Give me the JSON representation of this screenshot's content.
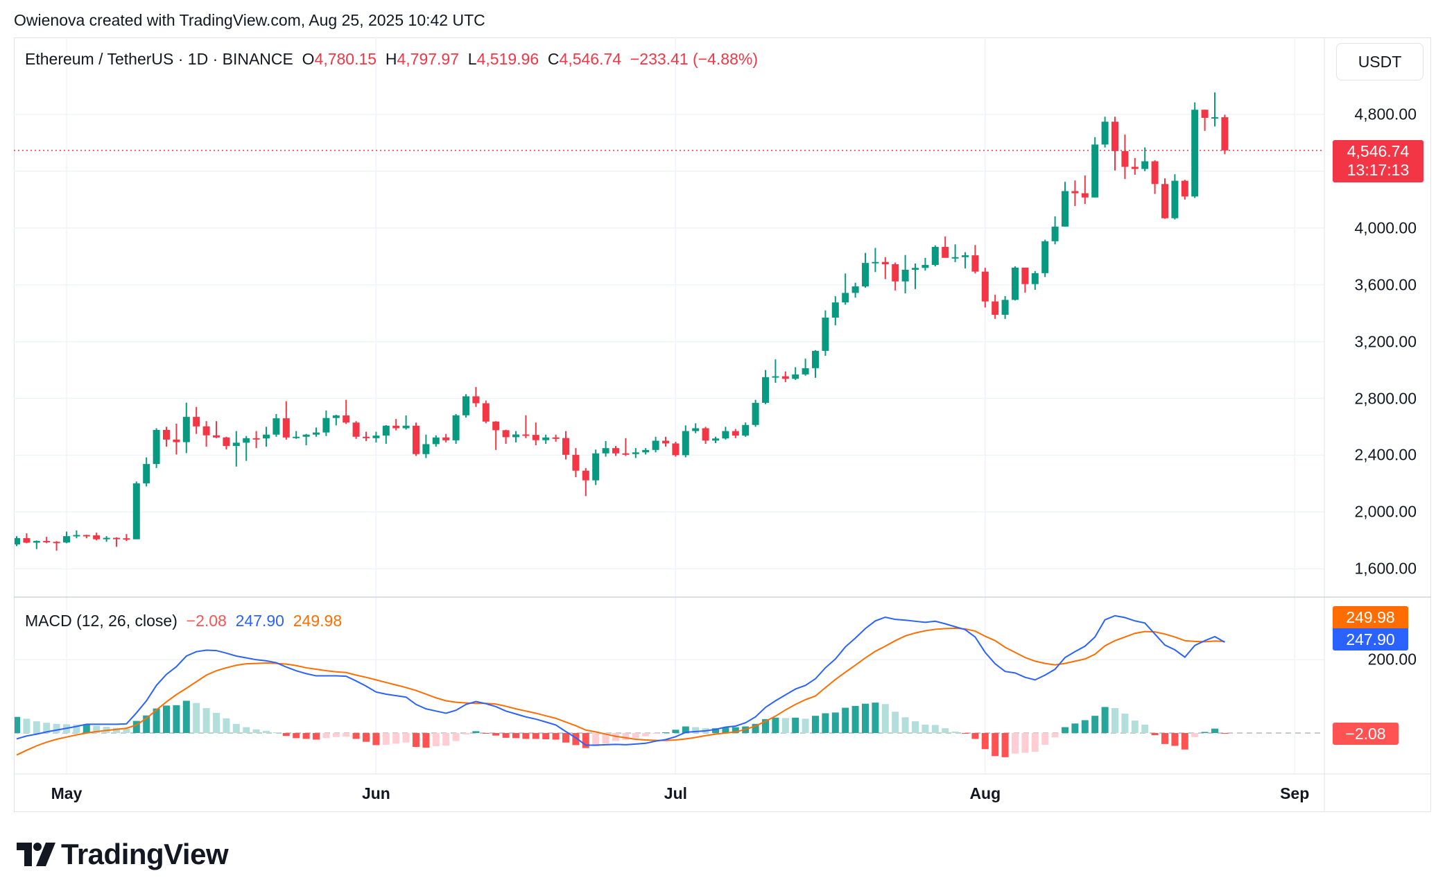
{
  "header": {
    "attribution": "Owienova created with TradingView.com, Aug 25, 2025 10:42 UTC"
  },
  "legend": {
    "symbol": "Ethereum / TetherUS · 1D · BINANCE",
    "o_label": "O",
    "o": "4,780.15",
    "h_label": "H",
    "h": "4,797.97",
    "l_label": "L",
    "l": "4,519.96",
    "c_label": "C",
    "c": "4,546.74",
    "change": "−233.41 (−4.88%)"
  },
  "price_axis": {
    "currency": "USDT",
    "last_price": "4,546.74",
    "countdown": "13:17:13"
  },
  "macd_legend": {
    "title": "MACD (12, 26, close)",
    "hist": "−2.08",
    "macd": "247.90",
    "signal": "249.98"
  },
  "macd_axis": {
    "signal_label": "249.98",
    "macd_label": "247.90",
    "hist_label": "−2.08",
    "tick": "200.00"
  },
  "logo": {
    "text": "TradingView"
  },
  "colors": {
    "up": "#089981",
    "down": "#f23645",
    "macd": "#2962ff",
    "signal": "#ff6d00",
    "hist_up_strong": "#26a69a",
    "hist_up_weak": "#b2dfdb",
    "hist_down_strong": "#ff5252",
    "hist_down_weak": "#ffcdd2"
  },
  "chart_data": [
    {
      "type": "candlestick",
      "title": "Ethereum / TetherUS · 1D · BINANCE",
      "ylim": [
        1400,
        5050
      ],
      "yticks": [
        {
          "v": 4800,
          "label": "4,800.00"
        },
        {
          "v": 4000,
          "label": "4,000.00"
        },
        {
          "v": 3600,
          "label": "3,600.00"
        },
        {
          "v": 3200,
          "label": "3,200.00"
        },
        {
          "v": 2800,
          "label": "2,800.00"
        },
        {
          "v": 2400,
          "label": "2,400.00"
        },
        {
          "v": 2000,
          "label": "2,000.00"
        },
        {
          "v": 1600,
          "label": "1,600.00"
        }
      ],
      "xticks": [
        "May",
        "Jun",
        "Jul",
        "Aug",
        "Sep"
      ],
      "last_price": 4546.74,
      "ohlc": [
        [
          1772,
          1830,
          1760,
          1816
        ],
        [
          1816,
          1850,
          1780,
          1784
        ],
        [
          1784,
          1800,
          1739,
          1796
        ],
        [
          1796,
          1825,
          1780,
          1790
        ],
        [
          1790,
          1795,
          1728,
          1785
        ],
        [
          1785,
          1862,
          1780,
          1830
        ],
        [
          1830,
          1870,
          1815,
          1838
        ],
        [
          1838,
          1840,
          1815,
          1836
        ],
        [
          1836,
          1855,
          1800,
          1808
        ],
        [
          1808,
          1830,
          1790,
          1818
        ],
        [
          1818,
          1822,
          1755,
          1815
        ],
        [
          1815,
          1845,
          1795,
          1808
        ],
        [
          1808,
          2215,
          1808,
          2202
        ],
        [
          2202,
          2385,
          2180,
          2338
        ],
        [
          2338,
          2590,
          2310,
          2578
        ],
        [
          2578,
          2600,
          2460,
          2510
        ],
        [
          2510,
          2622,
          2405,
          2492
        ],
        [
          2492,
          2770,
          2415,
          2670
        ],
        [
          2670,
          2740,
          2550,
          2603
        ],
        [
          2603,
          2640,
          2460,
          2540
        ],
        [
          2540,
          2640,
          2520,
          2525
        ],
        [
          2525,
          2530,
          2440,
          2465
        ],
        [
          2465,
          2570,
          2320,
          2488
        ],
        [
          2488,
          2535,
          2360,
          2520
        ],
        [
          2520,
          2570,
          2450,
          2518
        ],
        [
          2518,
          2600,
          2460,
          2545
        ],
        [
          2545,
          2690,
          2530,
          2660
        ],
        [
          2660,
          2780,
          2510,
          2525
        ],
        [
          2525,
          2570,
          2515,
          2530
        ],
        [
          2530,
          2550,
          2470,
          2545
        ],
        [
          2545,
          2595,
          2530,
          2560
        ],
        [
          2560,
          2715,
          2535,
          2662
        ],
        [
          2662,
          2685,
          2610,
          2680
        ],
        [
          2680,
          2790,
          2620,
          2630
        ],
        [
          2630,
          2640,
          2515,
          2530
        ],
        [
          2530,
          2565,
          2500,
          2520
        ],
        [
          2520,
          2565,
          2490,
          2538
        ],
        [
          2538,
          2612,
          2480,
          2608
        ],
        [
          2608,
          2655,
          2575,
          2590
        ],
        [
          2590,
          2680,
          2580,
          2608
        ],
        [
          2608,
          2630,
          2395,
          2408
        ],
        [
          2408,
          2545,
          2380,
          2478
        ],
        [
          2478,
          2540,
          2460,
          2525
        ],
        [
          2525,
          2550,
          2490,
          2505
        ],
        [
          2505,
          2690,
          2480,
          2681
        ],
        [
          2681,
          2830,
          2665,
          2815
        ],
        [
          2815,
          2880,
          2740,
          2766
        ],
        [
          2766,
          2785,
          2625,
          2637
        ],
        [
          2637,
          2640,
          2437,
          2576
        ],
        [
          2576,
          2580,
          2480,
          2527
        ],
        [
          2527,
          2570,
          2490,
          2546
        ],
        [
          2546,
          2681,
          2520,
          2543
        ],
        [
          2543,
          2630,
          2470,
          2506
        ],
        [
          2506,
          2545,
          2480,
          2525
        ],
        [
          2525,
          2545,
          2495,
          2521
        ],
        [
          2521,
          2570,
          2370,
          2403
        ],
        [
          2403,
          2450,
          2245,
          2291
        ],
        [
          2291,
          2310,
          2112,
          2223
        ],
        [
          2223,
          2440,
          2190,
          2413
        ],
        [
          2413,
          2500,
          2390,
          2450
        ],
        [
          2450,
          2465,
          2395,
          2413
        ],
        [
          2413,
          2520,
          2395,
          2408
        ],
        [
          2408,
          2450,
          2380,
          2420
        ],
        [
          2420,
          2450,
          2405,
          2437
        ],
        [
          2437,
          2530,
          2420,
          2502
        ],
        [
          2502,
          2530,
          2460,
          2483
        ],
        [
          2483,
          2495,
          2390,
          2400
        ],
        [
          2400,
          2610,
          2385,
          2570
        ],
        [
          2570,
          2625,
          2555,
          2590
        ],
        [
          2590,
          2600,
          2480,
          2503
        ],
        [
          2503,
          2530,
          2485,
          2518
        ],
        [
          2518,
          2600,
          2510,
          2570
        ],
        [
          2570,
          2585,
          2520,
          2538
        ],
        [
          2538,
          2630,
          2530,
          2613
        ],
        [
          2613,
          2790,
          2600,
          2769
        ],
        [
          2769,
          3000,
          2760,
          2950
        ],
        [
          2950,
          3075,
          2910,
          2956
        ],
        [
          2956,
          2990,
          2915,
          2938
        ],
        [
          2938,
          3020,
          2930,
          2969
        ],
        [
          2969,
          3080,
          2960,
          3013
        ],
        [
          3013,
          3140,
          2945,
          3135
        ],
        [
          3135,
          3420,
          3100,
          3369
        ],
        [
          3369,
          3520,
          3315,
          3476
        ],
        [
          3476,
          3680,
          3460,
          3543
        ],
        [
          3543,
          3615,
          3510,
          3589
        ],
        [
          3589,
          3825,
          3580,
          3754
        ],
        [
          3754,
          3860,
          3690,
          3761
        ],
        [
          3761,
          3795,
          3640,
          3745
        ],
        [
          3745,
          3757,
          3560,
          3624
        ],
        [
          3624,
          3810,
          3540,
          3706
        ],
        [
          3706,
          3750,
          3570,
          3719
        ],
        [
          3719,
          3790,
          3700,
          3740
        ],
        [
          3740,
          3878,
          3730,
          3867
        ],
        [
          3867,
          3940,
          3820,
          3790
        ],
        [
          3790,
          3885,
          3760,
          3795
        ],
        [
          3795,
          3830,
          3715,
          3808
        ],
        [
          3808,
          3880,
          3680,
          3693
        ],
        [
          3693,
          3720,
          3440,
          3483
        ],
        [
          3483,
          3530,
          3360,
          3389
        ],
        [
          3389,
          3520,
          3360,
          3494
        ],
        [
          3494,
          3730,
          3490,
          3721
        ],
        [
          3721,
          3721,
          3545,
          3605
        ],
        [
          3605,
          3697,
          3565,
          3682
        ],
        [
          3682,
          3918,
          3655,
          3907
        ],
        [
          3907,
          4082,
          3885,
          4010
        ],
        [
          4010,
          4325,
          4010,
          4260
        ],
        [
          4260,
          4335,
          4155,
          4245
        ],
        [
          4245,
          4370,
          4170,
          4215
        ],
        [
          4215,
          4640,
          4215,
          4588
        ],
        [
          4588,
          4784,
          4567,
          4749
        ],
        [
          4749,
          4784,
          4405,
          4542
        ],
        [
          4542,
          4658,
          4345,
          4431
        ],
        [
          4431,
          4493,
          4375,
          4416
        ],
        [
          4416,
          4568,
          4400,
          4470
        ],
        [
          4470,
          4477,
          4240,
          4310
        ],
        [
          4310,
          4350,
          4065,
          4069
        ],
        [
          4069,
          4379,
          4060,
          4333
        ],
        [
          4333,
          4340,
          4200,
          4222
        ],
        [
          4222,
          4885,
          4212,
          4833
        ],
        [
          4833,
          4833,
          4684,
          4776
        ],
        [
          4776,
          4955,
          4715,
          4780.15
        ],
        [
          4780.15,
          4797.97,
          4519.96,
          4546.74
        ]
      ]
    },
    {
      "type": "line",
      "title": "MACD (12, 26, close)",
      "ylim": [
        -130,
        390
      ],
      "series": [
        {
          "name": "MACD",
          "values": [
            -16,
            -8,
            -3,
            3,
            8,
            13,
            18,
            24,
            24,
            24,
            24,
            25,
            55,
            88,
            130,
            160,
            181,
            210,
            222,
            226,
            225,
            218,
            210,
            205,
            200,
            197,
            192,
            180,
            170,
            162,
            156,
            156,
            156,
            155,
            142,
            128,
            112,
            106,
            102,
            98,
            78,
            66,
            60,
            54,
            62,
            78,
            86,
            80,
            72,
            60,
            52,
            44,
            38,
            30,
            22,
            4,
            -13,
            -33,
            -33,
            -32,
            -31,
            -32,
            -30,
            -28,
            -22,
            -18,
            -10,
            2,
            4,
            6,
            10,
            16,
            19,
            28,
            44,
            70,
            88,
            104,
            120,
            130,
            148,
            178,
            202,
            235,
            259,
            285,
            306,
            316,
            310,
            308,
            305,
            302,
            305,
            298,
            290,
            282,
            262,
            220,
            189,
            168,
            164,
            152,
            145,
            158,
            174,
            206,
            222,
            237,
            262,
            309,
            320,
            315,
            306,
            300,
            270,
            240,
            227,
            207,
            239,
            252,
            263,
            247.9
          ]
        },
        {
          "name": "Signal",
          "values": [
            -60,
            -47,
            -35,
            -25,
            -17,
            -11,
            -5,
            0,
            4,
            7,
            10,
            13,
            22,
            40,
            63,
            85,
            105,
            122,
            140,
            158,
            170,
            178,
            185,
            189,
            190,
            191,
            190,
            188,
            184,
            178,
            174,
            170,
            167,
            165,
            158,
            152,
            145,
            138,
            131,
            124,
            116,
            106,
            96,
            88,
            84,
            82,
            81,
            81,
            79,
            73,
            66,
            60,
            54,
            47,
            40,
            30,
            20,
            8,
            3,
            -3,
            -9,
            -13,
            -17,
            -19,
            -20,
            -20,
            -19,
            -16,
            -12,
            -7,
            -3,
            0,
            3,
            10,
            19,
            32,
            46,
            63,
            78,
            91,
            101,
            124,
            146,
            166,
            185,
            205,
            223,
            237,
            252,
            265,
            273,
            279,
            283,
            285,
            286,
            284,
            278,
            264,
            252,
            234,
            220,
            206,
            196,
            190,
            186,
            190,
            196,
            202,
            215,
            238,
            252,
            262,
            272,
            277,
            276,
            270,
            262,
            252,
            250,
            249,
            251,
            249.98
          ]
        }
      ],
      "yticks": [
        {
          "v": 200,
          "label": "200.00"
        }
      ]
    }
  ]
}
